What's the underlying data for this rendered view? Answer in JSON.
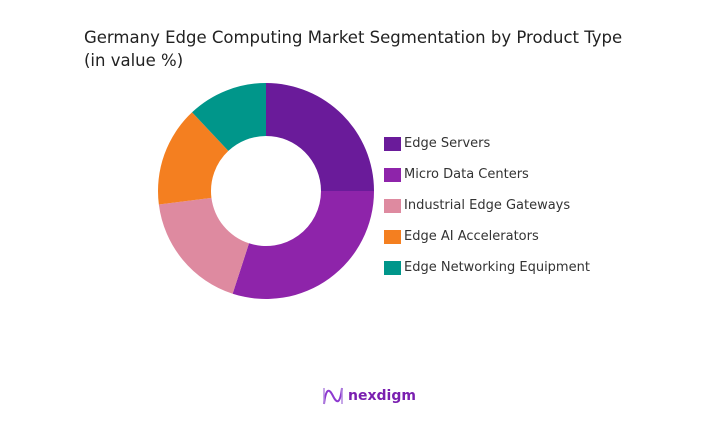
{
  "chart_data": {
    "type": "pie",
    "donut": true,
    "title": "Germany Edge Computing Market Segmentation by Product Type",
    "subtitle": "(in value %)",
    "categories": [
      "Edge Servers",
      "Micro Data Centers",
      "Industrial Edge Gateways",
      "Edge AI Accelerators",
      "Edge Networking Equipment"
    ],
    "values": [
      25,
      30,
      18,
      15,
      12
    ],
    "colors": [
      "#6a1b9a",
      "#8e24aa",
      "#de8aa0",
      "#f47f20",
      "#00968a"
    ],
    "legend": "right"
  },
  "brand": {
    "name": "nexdigm"
  }
}
